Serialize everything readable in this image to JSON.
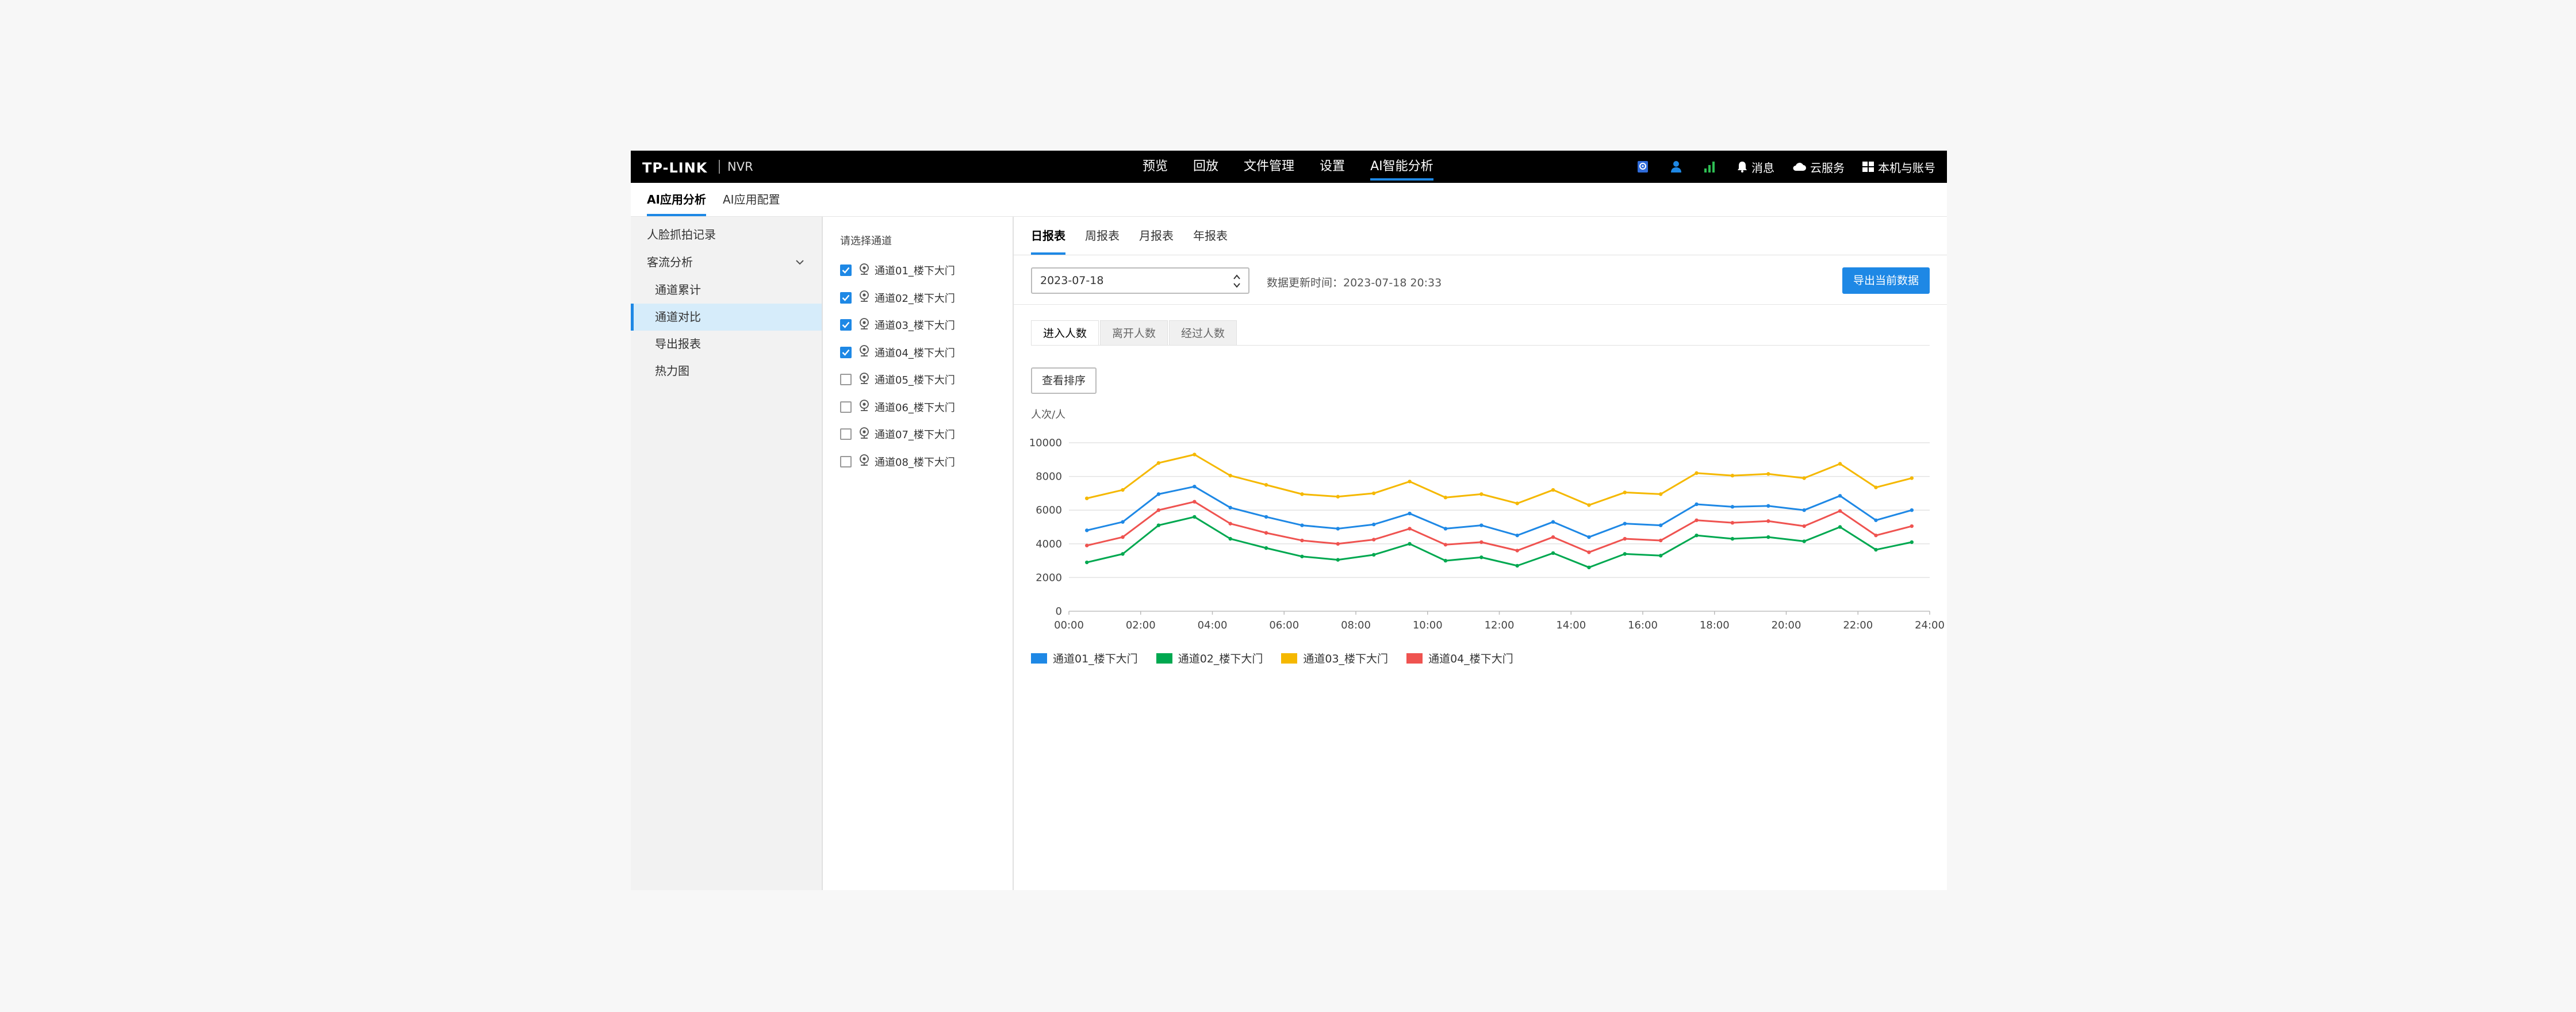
{
  "header": {
    "logo": "TP-LINK",
    "product": "NVR",
    "nav": [
      {
        "label": "预览"
      },
      {
        "label": "回放"
      },
      {
        "label": "文件管理"
      },
      {
        "label": "设置"
      },
      {
        "label": "AI智能分析",
        "active": true
      }
    ],
    "tools": {
      "messages": "消息",
      "cloud": "云服务",
      "account": "本机与账号"
    }
  },
  "subtabs": [
    {
      "label": "AI应用分析",
      "active": true
    },
    {
      "label": "AI应用配置"
    }
  ],
  "sidebar": {
    "items": [
      {
        "label": "人脸抓拍记录"
      },
      {
        "label": "客流分析",
        "expanded": true
      },
      {
        "label": "通道累计"
      },
      {
        "label": "通道对比",
        "active": true
      },
      {
        "label": "导出报表"
      },
      {
        "label": "热力图"
      }
    ]
  },
  "channels": {
    "title": "请选择通道",
    "items": [
      {
        "label": "通道01_楼下大门",
        "checked": true
      },
      {
        "label": "通道02_楼下大门",
        "checked": true
      },
      {
        "label": "通道03_楼下大门",
        "checked": true
      },
      {
        "label": "通道04_楼下大门",
        "checked": true
      },
      {
        "label": "通道05_楼下大门",
        "checked": false
      },
      {
        "label": "通道06_楼下大门",
        "checked": false
      },
      {
        "label": "通道07_楼下大门",
        "checked": false
      },
      {
        "label": "通道08_楼下大门",
        "checked": false
      }
    ]
  },
  "report": {
    "tabs": [
      {
        "label": "日报表",
        "active": true
      },
      {
        "label": "周报表"
      },
      {
        "label": "月报表"
      },
      {
        "label": "年报表"
      }
    ],
    "date": "2023-07-18",
    "update_time": "数据更新时间：2023-07-18 20:33",
    "export_label": "导出当前数据",
    "metric_tabs": [
      {
        "label": "进入人数",
        "active": true
      },
      {
        "label": "离开人数"
      },
      {
        "label": "经过人数"
      }
    ],
    "sort_label": "查看排序"
  },
  "colors": {
    "accent": "#1e88e5",
    "series": [
      "#1e88e5",
      "#00a850",
      "#f5b800",
      "#ef5350"
    ]
  },
  "chart_data": {
    "type": "line",
    "ylabel": "人次/人",
    "ylim": [
      0,
      10000
    ],
    "yticks": [
      0,
      2000,
      4000,
      6000,
      8000,
      10000
    ],
    "xlim": [
      0,
      24
    ],
    "xticks": [
      "00:00",
      "02:00",
      "04:00",
      "06:00",
      "08:00",
      "10:00",
      "12:00",
      "14:00",
      "16:00",
      "18:00",
      "20:00",
      "22:00",
      "24:00"
    ],
    "grid": true,
    "legend_position": "bottom-left",
    "x": [
      0.5,
      1.5,
      2.5,
      3.5,
      4.5,
      5.5,
      6.5,
      7.5,
      8.5,
      9.5,
      10.5,
      11.5,
      12.5,
      13.5,
      14.5,
      15.5,
      16.5,
      17.5,
      18.5,
      19.5,
      20.5,
      21.5,
      22.5,
      23.5
    ],
    "series": [
      {
        "name": "通道01_楼下大门",
        "values": [
          4800,
          5300,
          6950,
          7400,
          6150,
          5600,
          5100,
          4900,
          5150,
          5800,
          4900,
          5100,
          4500,
          5300,
          4400,
          5200,
          5100,
          6350,
          6200,
          6250,
          6000,
          6850,
          5400,
          6000
        ]
      },
      {
        "name": "通道02_楼下大门",
        "values": [
          2900,
          3400,
          5100,
          5600,
          4300,
          3750,
          3250,
          3050,
          3350,
          4000,
          3000,
          3200,
          2700,
          3450,
          2600,
          3400,
          3300,
          4500,
          4300,
          4400,
          4150,
          5000,
          3650,
          4100
        ]
      },
      {
        "name": "通道03_楼下大门",
        "values": [
          6700,
          7200,
          8800,
          9300,
          8050,
          7500,
          6950,
          6800,
          7000,
          7700,
          6750,
          6950,
          6400,
          7200,
          6300,
          7050,
          6950,
          8200,
          8050,
          8150,
          7900,
          8750,
          7350,
          7900
        ]
      },
      {
        "name": "通道04_楼下大门",
        "values": [
          3900,
          4400,
          6000,
          6500,
          5200,
          4650,
          4200,
          4000,
          4250,
          4900,
          3950,
          4100,
          3600,
          4400,
          3500,
          4300,
          4200,
          5400,
          5250,
          5350,
          5050,
          5950,
          4500,
          5050
        ]
      }
    ]
  }
}
